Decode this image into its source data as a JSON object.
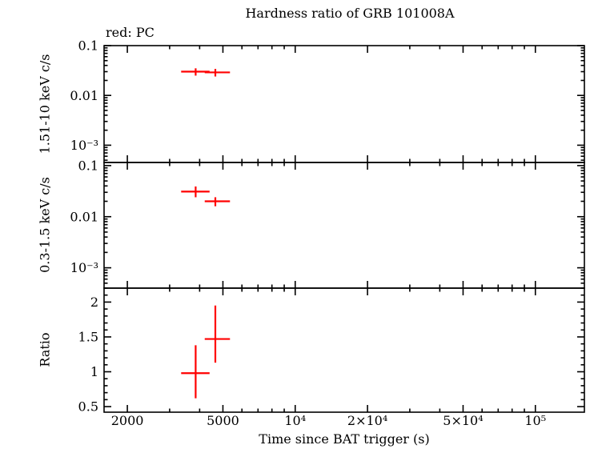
{
  "chart_data": {
    "type": "scatter",
    "title": "Hardness ratio of GRB 101008A",
    "legend": "red: PC",
    "xlabel": "Time since BAT trigger (s)",
    "colors": {
      "data": "#ff0000",
      "frame": "#000000",
      "background": "#ffffff"
    },
    "x_axis": {
      "scale": "log",
      "lim": [
        1600,
        160000
      ],
      "major_ticks": [
        {
          "value": 2000,
          "label": "2000"
        },
        {
          "value": 5000,
          "label": "5000"
        },
        {
          "value": 10000,
          "label": "10⁴"
        },
        {
          "value": 20000,
          "label": "2×10⁴"
        },
        {
          "value": 50000,
          "label": "5×10⁴"
        },
        {
          "value": 100000,
          "label": "10⁵"
        }
      ]
    },
    "panels": [
      {
        "name": "hard-rate",
        "ylabel": "1.51-10 keV c/s",
        "yscale": "log",
        "ylim": [
          0.00045,
          0.1
        ],
        "yticks": [
          {
            "value": 0.1,
            "label": "0.1"
          },
          {
            "value": 0.01,
            "label": "0.01"
          },
          {
            "value": 0.001,
            "label": "10⁻³"
          }
        ],
        "points": [
          {
            "x": 3850,
            "x_lo": 3350,
            "x_hi": 4400,
            "y": 0.03,
            "y_lo": 0.025,
            "y_hi": 0.035
          },
          {
            "x": 4650,
            "x_lo": 4200,
            "x_hi": 5350,
            "y": 0.029,
            "y_lo": 0.024,
            "y_hi": 0.034
          }
        ]
      },
      {
        "name": "soft-rate",
        "ylabel": "0.3-1.5 keV c/s",
        "yscale": "log",
        "ylim": [
          0.0004,
          0.115
        ],
        "yticks": [
          {
            "value": 0.1,
            "label": "0.1"
          },
          {
            "value": 0.01,
            "label": "0.01"
          },
          {
            "value": 0.001,
            "label": "10⁻³"
          }
        ],
        "points": [
          {
            "x": 3850,
            "x_lo": 3350,
            "x_hi": 4400,
            "y": 0.031,
            "y_lo": 0.024,
            "y_hi": 0.039
          },
          {
            "x": 4650,
            "x_lo": 4200,
            "x_hi": 5350,
            "y": 0.02,
            "y_lo": 0.016,
            "y_hi": 0.024
          }
        ]
      },
      {
        "name": "ratio",
        "ylabel": "Ratio",
        "yscale": "linear",
        "ylim": [
          0.42,
          2.2
        ],
        "yticks": [
          {
            "value": 2,
            "label": "2"
          },
          {
            "value": 1.5,
            "label": "1.5"
          },
          {
            "value": 1,
            "label": "1"
          },
          {
            "value": 0.5,
            "label": "0.5"
          }
        ],
        "points": [
          {
            "x": 3850,
            "x_lo": 3350,
            "x_hi": 4400,
            "y": 0.98,
            "y_lo": 0.62,
            "y_hi": 1.38
          },
          {
            "x": 4650,
            "x_lo": 4200,
            "x_hi": 5350,
            "y": 1.47,
            "y_lo": 1.13,
            "y_hi": 1.95
          }
        ]
      }
    ]
  }
}
